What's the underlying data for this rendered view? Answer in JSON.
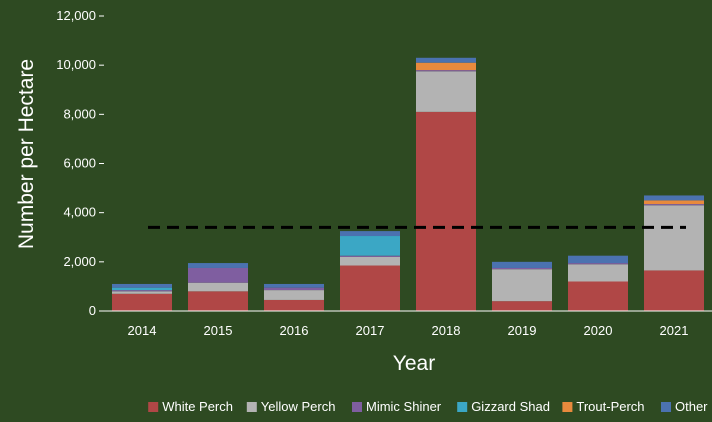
{
  "chart_data": {
    "type": "bar",
    "stacked": true,
    "title": "",
    "xlabel": "Year",
    "ylabel": "Number per Hectare",
    "ylim": [
      0,
      12000
    ],
    "yticks": [
      "0",
      "2,000",
      "4,000",
      "6,000",
      "8,000",
      "10,000",
      "12,000"
    ],
    "ytick_values": [
      0,
      2000,
      4000,
      6000,
      8000,
      10000,
      12000
    ],
    "categories": [
      "2014",
      "2015",
      "2016",
      "2017",
      "2018",
      "2019",
      "2020",
      "2021"
    ],
    "series": [
      {
        "name": "White Perch",
        "color": "#b04746",
        "values": [
          700,
          800,
          450,
          1850,
          8100,
          400,
          1200,
          1650
        ]
      },
      {
        "name": "Yellow Perch",
        "color": "#b3b3b3",
        "values": [
          100,
          350,
          400,
          350,
          1650,
          1300,
          700,
          2650
        ]
      },
      {
        "name": "Mimic Shiner",
        "color": "#7f5ea0",
        "values": [
          50,
          600,
          100,
          50,
          50,
          50,
          50,
          50
        ]
      },
      {
        "name": "Gizzard Shad",
        "color": "#3ba7c5",
        "values": [
          100,
          0,
          0,
          800,
          0,
          0,
          0,
          0
        ]
      },
      {
        "name": "Trout-Perch",
        "color": "#e88a3d",
        "values": [
          0,
          0,
          0,
          0,
          300,
          0,
          0,
          150
        ]
      },
      {
        "name": "Other",
        "color": "#4b72b0",
        "values": [
          150,
          200,
          150,
          200,
          200,
          250,
          300,
          200
        ]
      }
    ],
    "reference_line": {
      "value": 3400,
      "style": "dashed",
      "color": "#000000"
    },
    "legend_position": "bottom",
    "grid": false
  }
}
